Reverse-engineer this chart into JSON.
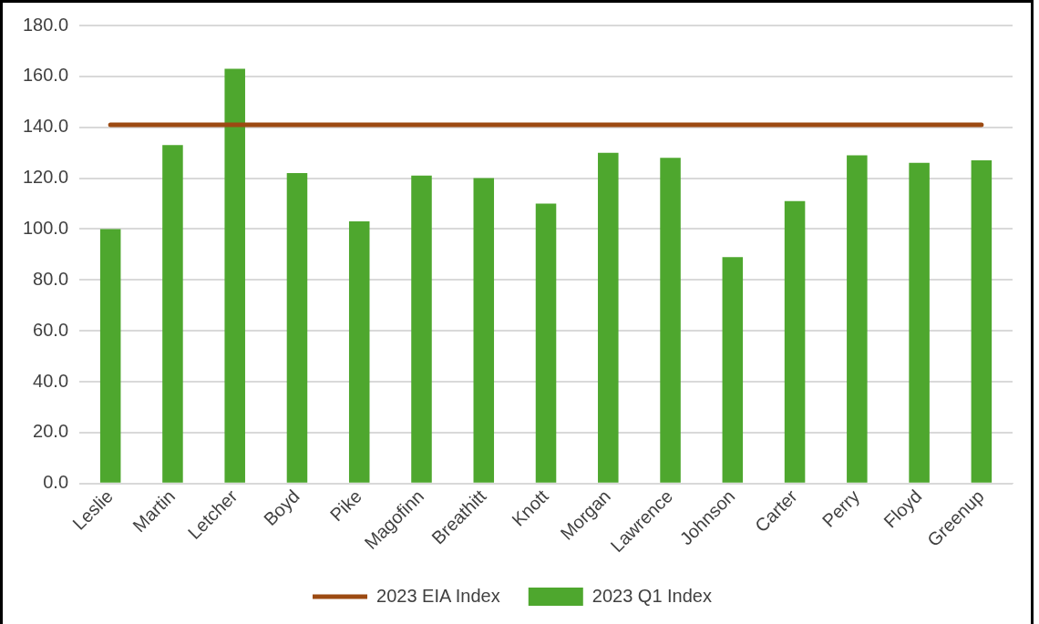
{
  "chart_data": {
    "type": "bar",
    "categories": [
      "Leslie",
      "Martin",
      "Letcher",
      "Boyd",
      "Pike",
      "Magofinn",
      "Breathitt",
      "Knott",
      "Morgan",
      "Lawrence",
      "Johnson",
      "Carter",
      "Perry",
      "Floyd",
      "Greenup"
    ],
    "series": [
      {
        "name": "2023 Q1 Index",
        "color": "#4ea72e",
        "values": [
          100,
          133,
          163,
          122,
          103,
          121,
          120,
          110,
          130,
          128,
          89,
          111,
          129,
          126,
          127
        ]
      },
      {
        "name": "2023 EIA Index",
        "type": "line",
        "color": "#9c4a12",
        "values": [
          141,
          141,
          141,
          141,
          141,
          141,
          141,
          141,
          141,
          141,
          141,
          141,
          141,
          141,
          141
        ]
      }
    ],
    "ylim": [
      0,
      180
    ],
    "yticks": [
      {
        "value": 0,
        "label": "0.0"
      },
      {
        "value": 20,
        "label": "20.0"
      },
      {
        "value": 40,
        "label": "40.0"
      },
      {
        "value": 60,
        "label": "60.0"
      },
      {
        "value": 80,
        "label": "80.0"
      },
      {
        "value": 100,
        "label": "100.0"
      },
      {
        "value": 120,
        "label": "120.0"
      },
      {
        "value": 140,
        "label": "140.0"
      },
      {
        "value": 160,
        "label": "160.0"
      },
      {
        "value": 180,
        "label": "180.0"
      }
    ],
    "grid": "y",
    "legend": "bottom",
    "marker": "none"
  }
}
